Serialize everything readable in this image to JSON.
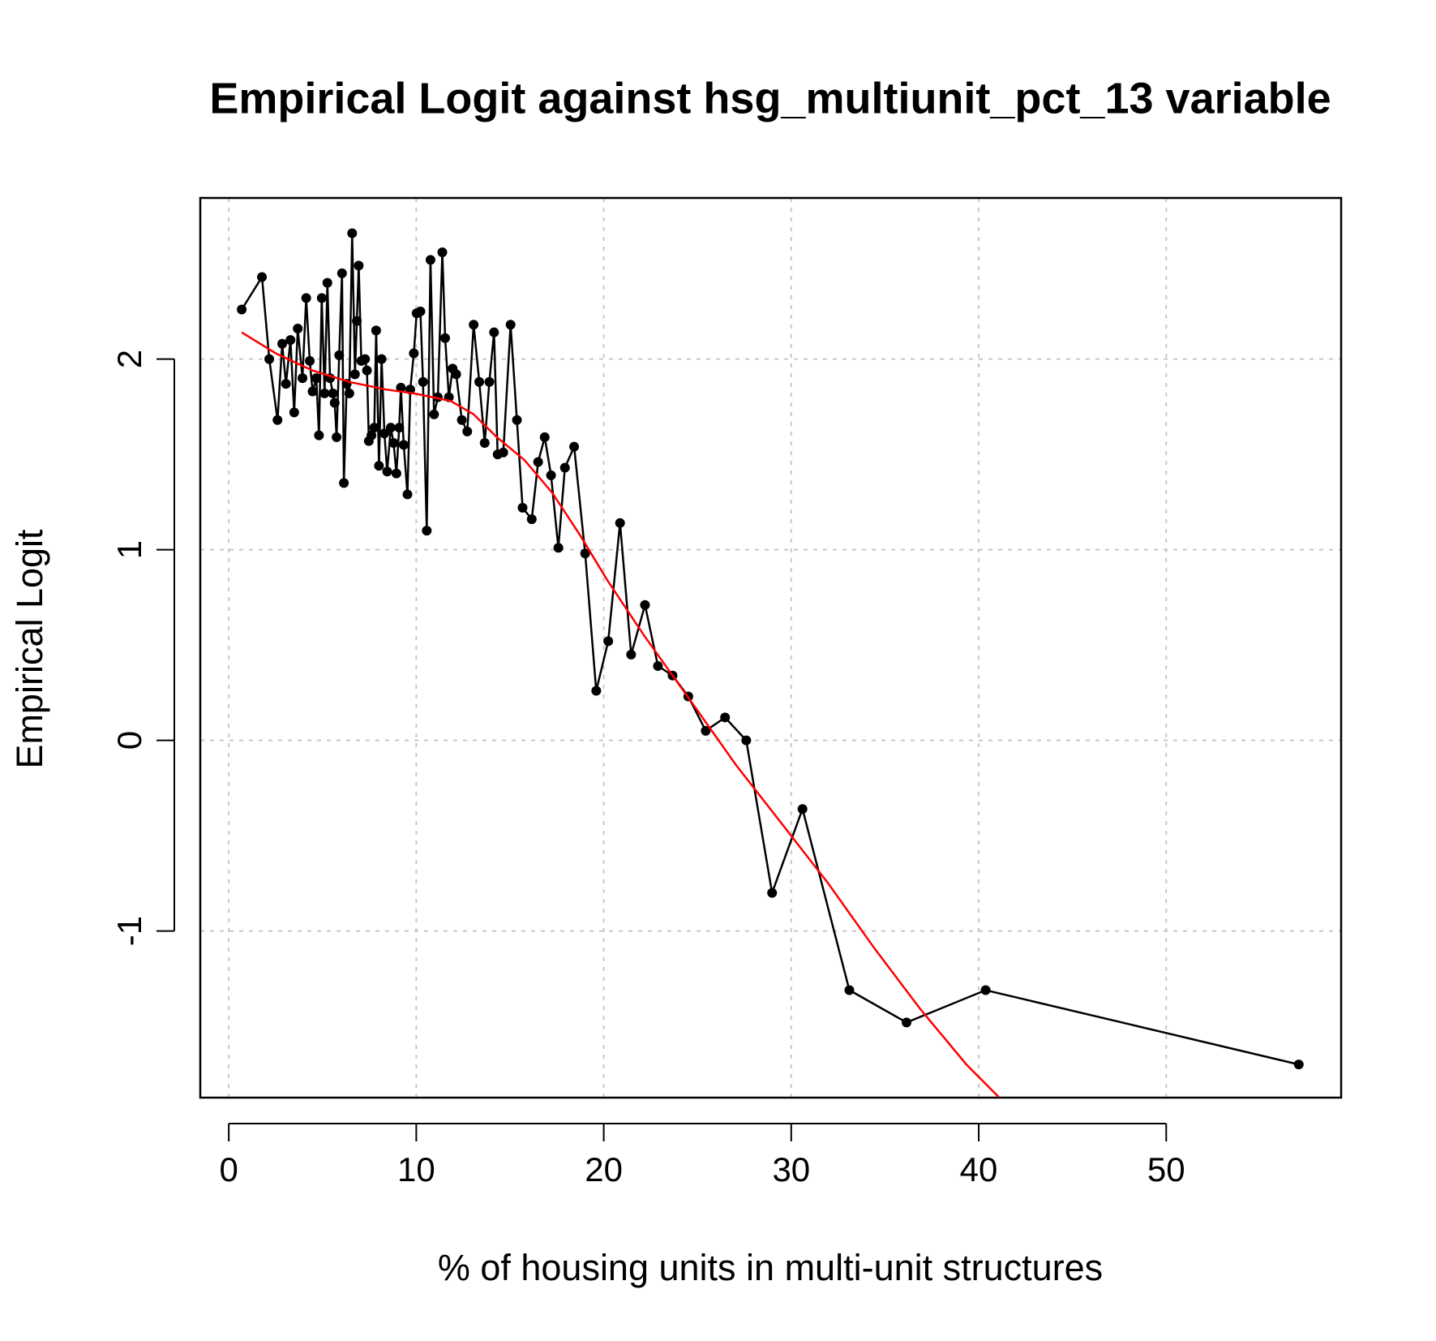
{
  "chart_data": {
    "type": "line",
    "title": "Empirical Logit against hsg_multiunit_pct_13 variable",
    "x_label": "% of housing units in multi-unit structures",
    "y_label": "Empirical Logit",
    "xlim": [
      -1.52,
      59.33
    ],
    "ylim": [
      -1.874,
      2.845
    ],
    "xticks": [
      0,
      10,
      20,
      30,
      40,
      50
    ],
    "yticks": [
      -1,
      0,
      1,
      2
    ],
    "grid": true,
    "series": [
      {
        "color": "#000000",
        "markers": true,
        "x": [
          0.69,
          1.77,
          2.16,
          2.6,
          2.85,
          3.05,
          3.29,
          3.49,
          3.68,
          3.93,
          4.13,
          4.32,
          4.47,
          4.67,
          4.81,
          4.96,
          5.11,
          5.26,
          5.4,
          5.55,
          5.65,
          5.75,
          5.89,
          6.04,
          6.14,
          6.29,
          6.43,
          6.58,
          6.73,
          6.83,
          6.93,
          7.07,
          7.27,
          7.37,
          7.47,
          7.61,
          7.76,
          7.86,
          8.01,
          8.15,
          8.3,
          8.45,
          8.64,
          8.79,
          8.94,
          9.09,
          9.18,
          9.33,
          9.53,
          9.68,
          9.87,
          10.02,
          10.22,
          10.36,
          10.56,
          10.76,
          10.95,
          11.15,
          11.39,
          11.54,
          11.74,
          11.94,
          12.13,
          12.43,
          12.72,
          13.06,
          13.36,
          13.65,
          13.9,
          14.15,
          14.34,
          14.64,
          15.03,
          15.37,
          15.67,
          16.16,
          16.5,
          16.85,
          17.19,
          17.58,
          17.93,
          18.42,
          19.01,
          19.6,
          20.24,
          20.87,
          21.46,
          22.2,
          22.89,
          23.67,
          24.51,
          25.44,
          26.47,
          27.6,
          28.98,
          30.6,
          33.1,
          36.15,
          40.37,
          57.07
        ],
        "values": [
          2.26,
          2.43,
          2.0,
          1.68,
          2.08,
          1.87,
          2.1,
          1.72,
          2.16,
          1.9,
          2.32,
          1.99,
          1.83,
          1.9,
          1.6,
          2.32,
          1.82,
          2.4,
          1.9,
          1.82,
          1.77,
          1.59,
          2.02,
          2.45,
          1.35,
          1.87,
          1.82,
          2.66,
          1.92,
          2.2,
          2.49,
          1.99,
          2.0,
          1.94,
          1.57,
          1.6,
          1.64,
          2.15,
          1.44,
          2.0,
          1.61,
          1.41,
          1.64,
          1.56,
          1.4,
          1.64,
          1.85,
          1.55,
          1.29,
          1.84,
          2.03,
          2.24,
          2.25,
          1.88,
          1.1,
          2.52,
          1.71,
          1.8,
          2.56,
          2.11,
          1.8,
          1.95,
          1.92,
          1.68,
          1.62,
          2.18,
          1.88,
          1.56,
          1.88,
          2.14,
          1.5,
          1.51,
          2.18,
          1.68,
          1.22,
          1.16,
          1.46,
          1.59,
          1.39,
          1.01,
          1.43,
          1.54,
          0.98,
          0.26,
          0.52,
          1.14,
          0.45,
          0.71,
          0.39,
          0.34,
          0.23,
          0.05,
          0.12,
          0.0,
          -0.8,
          -0.36,
          -1.31,
          -1.48,
          -1.31,
          -1.7
        ]
      },
      {
        "color": "#ff0000",
        "markers": false,
        "x": [
          0.69,
          2.5,
          4.47,
          6.43,
          8.4,
          9.87,
          11.84,
          13.06,
          14.3,
          15.77,
          17.24,
          18.71,
          20.19,
          22.15,
          24.61,
          27.06,
          29.52,
          31.97,
          34.43,
          36.89,
          39.34,
          41.06
        ],
        "values": [
          2.14,
          2.03,
          1.94,
          1.88,
          1.84,
          1.82,
          1.78,
          1.71,
          1.59,
          1.47,
          1.3,
          1.08,
          0.84,
          0.55,
          0.21,
          -0.13,
          -0.44,
          -0.75,
          -1.09,
          -1.41,
          -1.7,
          -1.87
        ]
      }
    ]
  }
}
